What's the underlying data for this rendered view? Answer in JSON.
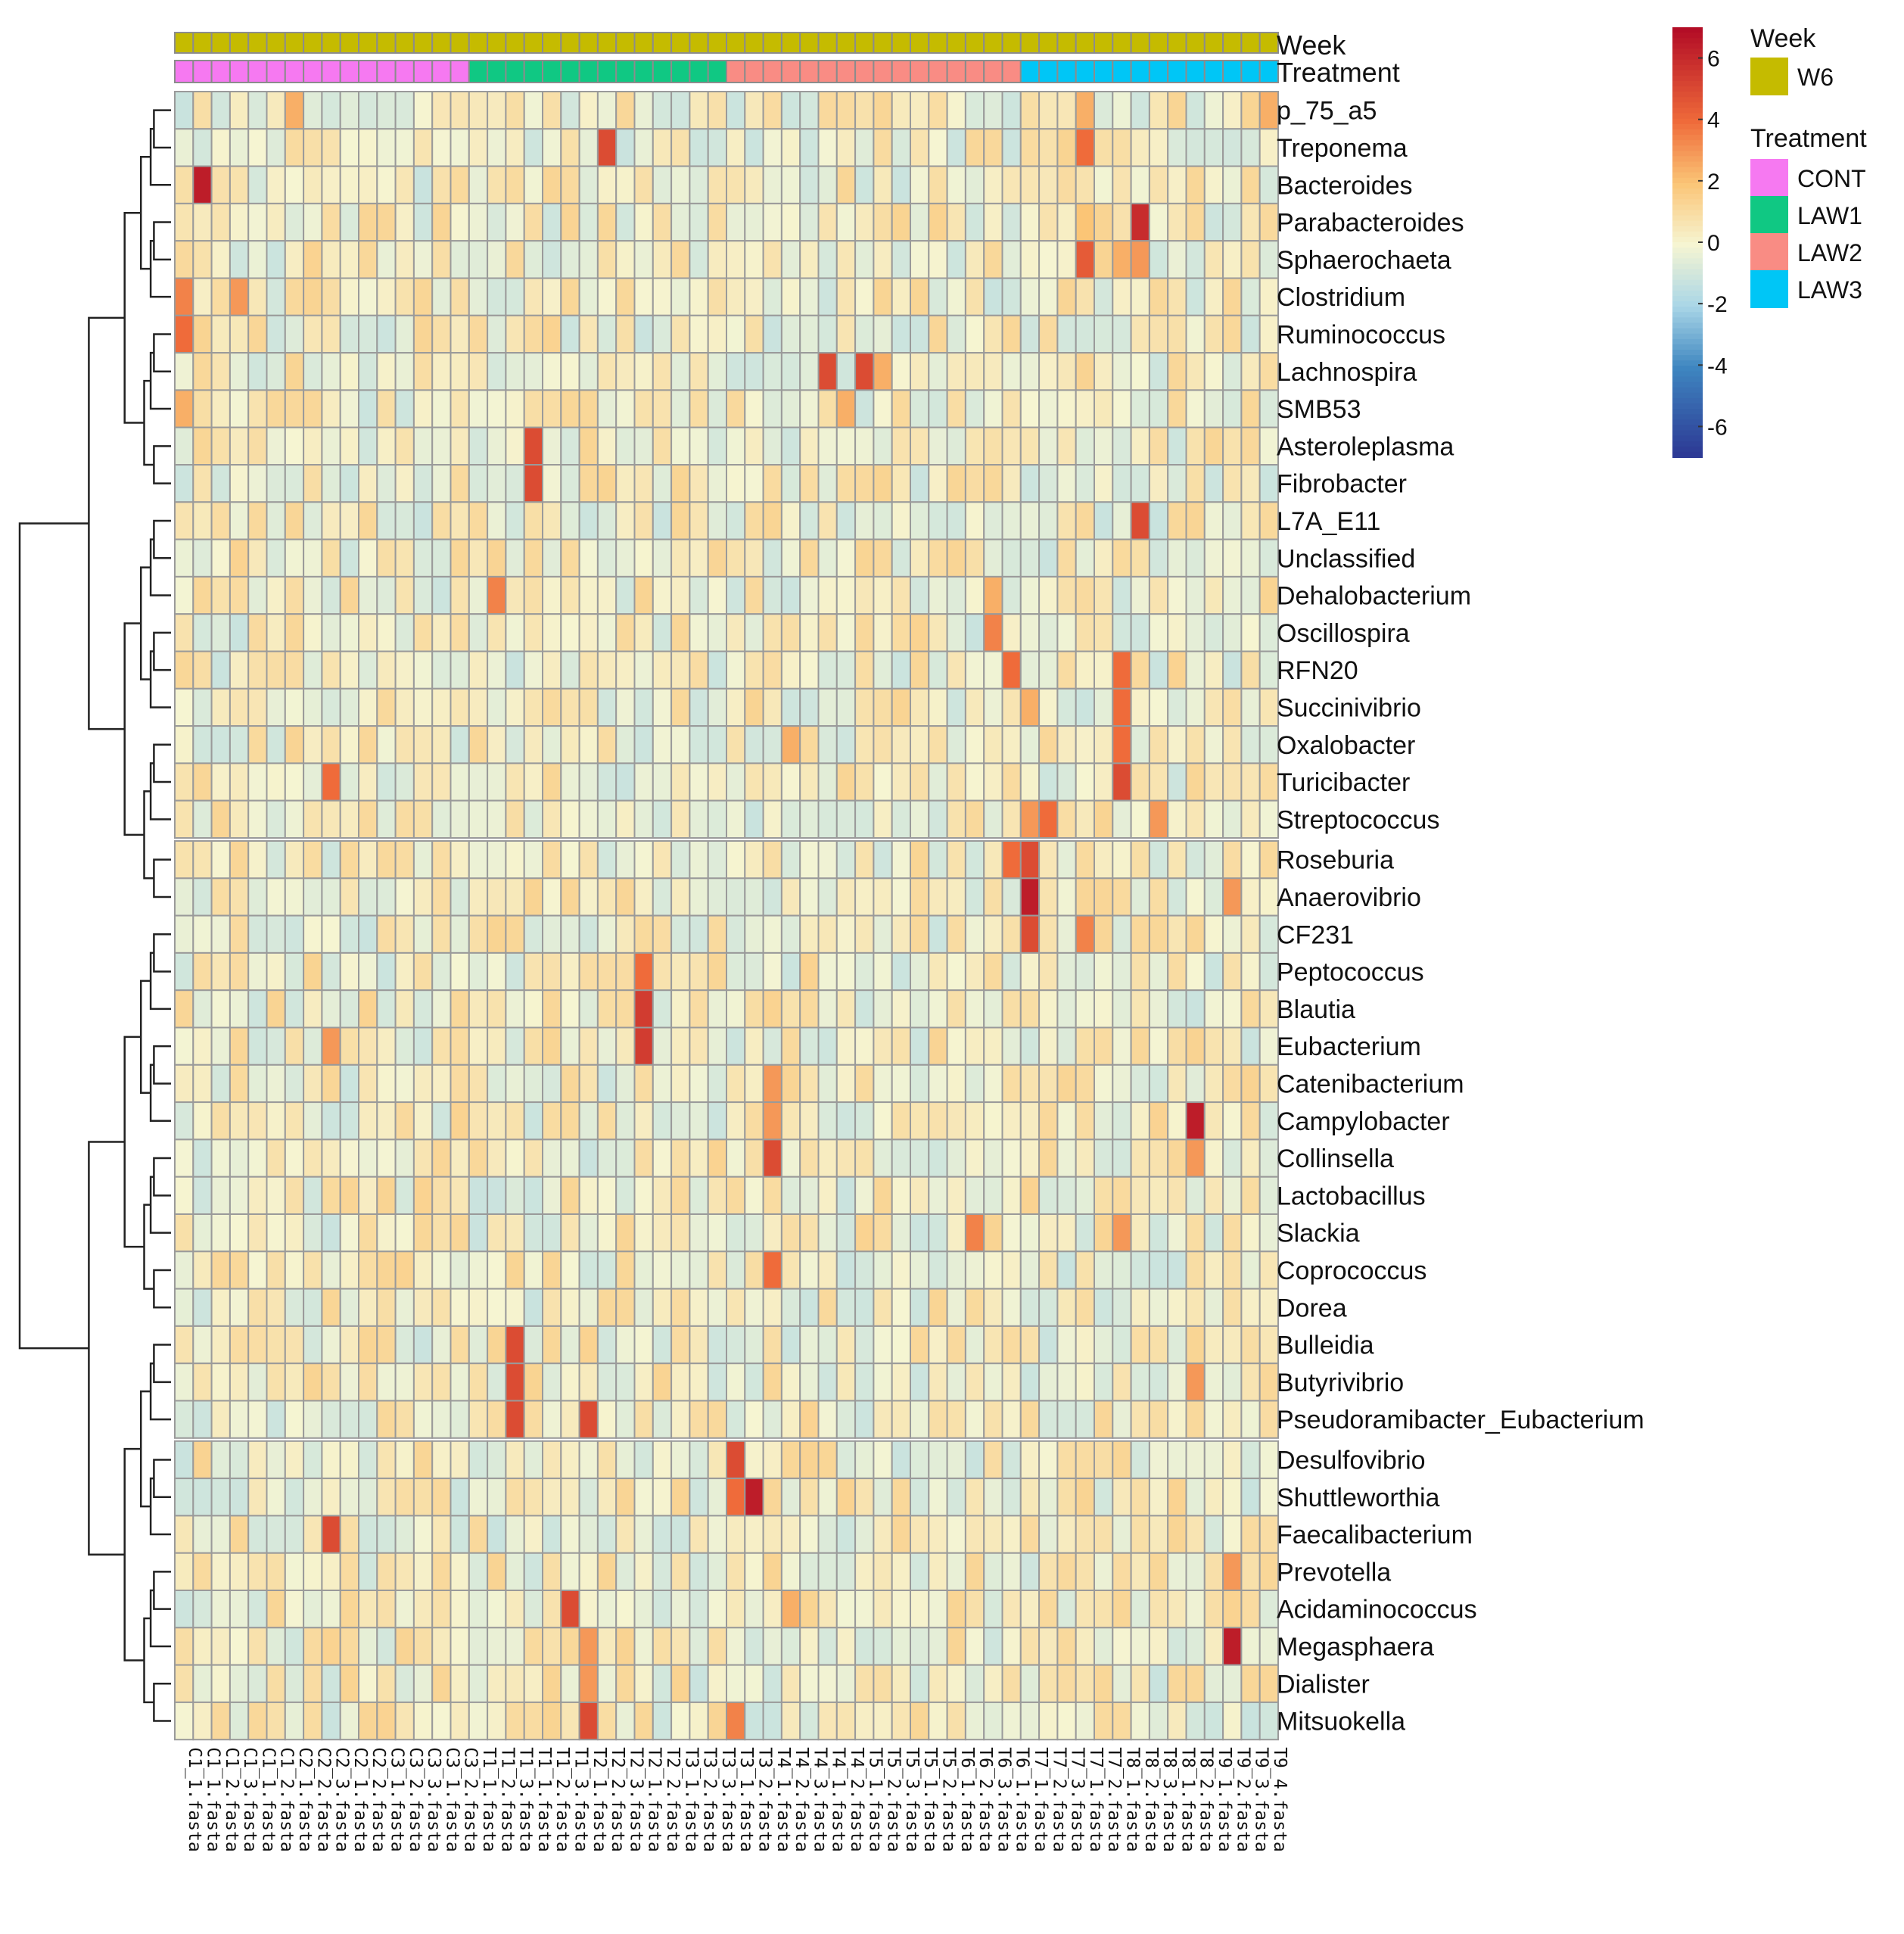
{
  "chart_data": {
    "type": "heatmap",
    "title": "",
    "rows": [
      "p_75_a5",
      "Treponema",
      "Bacteroides",
      "Parabacteroides",
      "Sphaerochaeta",
      "Clostridium",
      "Ruminococcus",
      "Lachnospira",
      "SMB53",
      "Asteroleplasma",
      "Fibrobacter",
      "L7A_E11",
      "Unclassified",
      "Dehalobacterium",
      "Oscillospira",
      "RFN20",
      "Succinivibrio",
      "Oxalobacter",
      "Turicibacter",
      "Streptococcus",
      "Roseburia",
      "Anaerovibrio",
      "CF231",
      "Peptococcus",
      "Blautia",
      "Eubacterium",
      "Catenibacterium",
      "Campylobacter",
      "Collinsella",
      "Lactobacillus",
      "Slackia",
      "Coprococcus",
      "Dorea",
      "Bulleidia",
      "Butyrivibrio",
      "Pseudoramibacter_Eubacterium",
      "Desulfovibrio",
      "Shuttleworthia",
      "Faecalibacterium",
      "Prevotella",
      "Acidaminococcus",
      "Megasphaera",
      "Dialister",
      "Mitsuokella"
    ],
    "n_columns": 60,
    "column_labels": [
      "C1_1.fasta",
      "C1_1.fasta",
      "C1_2.fasta",
      "C1_3.fasta",
      "C1_1.fasta",
      "C1_2.fasta",
      "C2_1.fasta",
      "C2_2.fasta",
      "C2_3.fasta",
      "C2_1.fasta",
      "C2_2.fasta",
      "C3_1.fasta",
      "C3_2.fasta",
      "C3_3.fasta",
      "C3_1.fasta",
      "C3_2.fasta",
      "T1_1.fasta",
      "T1_2.fasta",
      "T1_3.fasta",
      "T1_1.fasta",
      "T1_2.fasta",
      "T1_3.fasta",
      "T2_1.fasta",
      "T2_2.fasta",
      "T2_3.fasta",
      "T2_1.fasta",
      "T2_2.fasta",
      "T3_1.fasta",
      "T3_2.fasta",
      "T3_3.fasta",
      "T3_1.fasta",
      "T3_2.fasta",
      "T4_1.fasta",
      "T4_2.fasta",
      "T4_3.fasta",
      "T4_1.fasta",
      "T4_2.fasta",
      "T5_1.fasta",
      "T5_2.fasta",
      "T5_3.fasta",
      "T5_1.fasta",
      "T5_2.fasta",
      "T6_1.fasta",
      "T6_2.fasta",
      "T6_3.fasta",
      "T6_1.fasta",
      "T7_1.fasta",
      "T7_2.fasta",
      "T7_3.fasta",
      "T7_1.fasta",
      "T7_2.fasta",
      "T8_1.fasta",
      "T8_2.fasta",
      "T8_3.fasta",
      "T8_1.fasta",
      "T8_2.fasta",
      "T9_1.fasta",
      "T9_2.fasta",
      "T9_3.fasta",
      "T9_4.fasta"
    ],
    "week_by_column": "W6",
    "treatment_groups": [
      {
        "name": "CONT",
        "count": 16
      },
      {
        "name": "LAW1",
        "count": 14
      },
      {
        "name": "LAW2",
        "count": 16
      },
      {
        "name": "LAW3",
        "count": 14
      }
    ],
    "row_gaps_after": [
      19,
      35
    ],
    "values_default": 0,
    "hot_cells": [
      {
        "row": "Bacteroides",
        "col": 1,
        "value": 6.5
      },
      {
        "row": "Clostridium",
        "col": 0,
        "value": 3.5
      },
      {
        "row": "Clostridium",
        "col": 3,
        "value": 3
      },
      {
        "row": "Ruminococcus",
        "col": 0,
        "value": 4
      },
      {
        "row": "SMB53",
        "col": 0,
        "value": 2.5
      },
      {
        "row": "p_75_a5",
        "col": 6,
        "value": 2.5
      },
      {
        "row": "p_75_a5",
        "col": 49,
        "value": 2.5
      },
      {
        "row": "p_75_a5",
        "col": 59,
        "value": 2.5
      },
      {
        "row": "Treponema",
        "col": 23,
        "value": 5
      },
      {
        "row": "Treponema",
        "col": 49,
        "value": 4
      },
      {
        "row": "Parabacteroides",
        "col": 52,
        "value": 6
      },
      {
        "row": "Parabacteroides",
        "col": 49,
        "value": 2
      },
      {
        "row": "Sphaerochaeta",
        "col": 49,
        "value": 4.5
      },
      {
        "row": "Sphaerochaeta",
        "col": 52,
        "value": 3
      },
      {
        "row": "Sphaerochaeta",
        "col": 51,
        "value": 2.5
      },
      {
        "row": "Lachnospira",
        "col": 35,
        "value": 5
      },
      {
        "row": "Lachnospira",
        "col": 37,
        "value": 5
      },
      {
        "row": "Lachnospira",
        "col": 38,
        "value": 2.5
      },
      {
        "row": "SMB53",
        "col": 36,
        "value": 2.5
      },
      {
        "row": "Asteroleplasma",
        "col": 19,
        "value": 5
      },
      {
        "row": "Fibrobacter",
        "col": 19,
        "value": 5
      },
      {
        "row": "L7A_E11",
        "col": 52,
        "value": 5
      },
      {
        "row": "Dehalobacterium",
        "col": 17,
        "value": 3.5
      },
      {
        "row": "Dehalobacterium",
        "col": 44,
        "value": 2.5
      },
      {
        "row": "Oscillospira",
        "col": 44,
        "value": 3.5
      },
      {
        "row": "RFN20",
        "col": 45,
        "value": 4
      },
      {
        "row": "RFN20",
        "col": 51,
        "value": 4
      },
      {
        "row": "Succinivibrio",
        "col": 51,
        "value": 4
      },
      {
        "row": "Succinivibrio",
        "col": 46,
        "value": 2.5
      },
      {
        "row": "Oxalobacter",
        "col": 51,
        "value": 4
      },
      {
        "row": "Oxalobacter",
        "col": 33,
        "value": 2.5
      },
      {
        "row": "Turicibacter",
        "col": 51,
        "value": 5
      },
      {
        "row": "Turicibacter",
        "col": 8,
        "value": 4
      },
      {
        "row": "Streptococcus",
        "col": 47,
        "value": 4
      },
      {
        "row": "Streptococcus",
        "col": 46,
        "value": 3
      },
      {
        "row": "Streptococcus",
        "col": 53,
        "value": 3
      },
      {
        "row": "Roseburia",
        "col": 46,
        "value": 5
      },
      {
        "row": "Roseburia",
        "col": 45,
        "value": 4
      },
      {
        "row": "Anaerovibrio",
        "col": 46,
        "value": 6.5
      },
      {
        "row": "Anaerovibrio",
        "col": 57,
        "value": 3
      },
      {
        "row": "CF231",
        "col": 46,
        "value": 5
      },
      {
        "row": "CF231",
        "col": 49,
        "value": 3.5
      },
      {
        "row": "Peptococcus",
        "col": 25,
        "value": 4
      },
      {
        "row": "Blautia",
        "col": 25,
        "value": 5.5
      },
      {
        "row": "Eubacterium",
        "col": 25,
        "value": 5.5
      },
      {
        "row": "Eubacterium",
        "col": 8,
        "value": 3
      },
      {
        "row": "Catenibacterium",
        "col": 32,
        "value": 3
      },
      {
        "row": "Campylobacter",
        "col": 55,
        "value": 6.5
      },
      {
        "row": "Campylobacter",
        "col": 32,
        "value": 3
      },
      {
        "row": "Collinsella",
        "col": 32,
        "value": 5
      },
      {
        "row": "Collinsella",
        "col": 55,
        "value": 3
      },
      {
        "row": "Slackia",
        "col": 43,
        "value": 3.5
      },
      {
        "row": "Slackia",
        "col": 51,
        "value": 3
      },
      {
        "row": "Coprococcus",
        "col": 32,
        "value": 4
      },
      {
        "row": "Bulleidia",
        "col": 18,
        "value": 5
      },
      {
        "row": "Butyrivibrio",
        "col": 18,
        "value": 5
      },
      {
        "row": "Butyrivibrio",
        "col": 55,
        "value": 3
      },
      {
        "row": "Pseudoramibacter_Eubacterium",
        "col": 18,
        "value": 5
      },
      {
        "row": "Pseudoramibacter_Eubacterium",
        "col": 22,
        "value": 5
      },
      {
        "row": "Desulfovibrio",
        "col": 30,
        "value": 5
      },
      {
        "row": "Shuttleworthia",
        "col": 31,
        "value": 6.5
      },
      {
        "row": "Shuttleworthia",
        "col": 30,
        "value": 4
      },
      {
        "row": "Faecalibacterium",
        "col": 8,
        "value": 5
      },
      {
        "row": "Prevotella",
        "col": 57,
        "value": 3
      },
      {
        "row": "Acidaminococcus",
        "col": 21,
        "value": 5
      },
      {
        "row": "Acidaminococcus",
        "col": 33,
        "value": 2.5
      },
      {
        "row": "Megasphaera",
        "col": 57,
        "value": 6.5
      },
      {
        "row": "Megasphaera",
        "col": 22,
        "value": 3
      },
      {
        "row": "Dialister",
        "col": 22,
        "value": 3
      },
      {
        "row": "Mitsuokella",
        "col": 22,
        "value": 5
      },
      {
        "row": "Mitsuokella",
        "col": 30,
        "value": 3.5
      }
    ],
    "color_scale": {
      "min": -7,
      "max": 7,
      "ticks": [
        6,
        4,
        2,
        0,
        -2,
        -4,
        -6
      ],
      "stops": [
        {
          "v": -7,
          "c": "#2c3592"
        },
        {
          "v": -4,
          "c": "#3e86c0"
        },
        {
          "v": -2,
          "c": "#a9d6e7"
        },
        {
          "v": 0,
          "c": "#f6f5d2"
        },
        {
          "v": 2,
          "c": "#fbc576"
        },
        {
          "v": 4,
          "c": "#ef6b3a"
        },
        {
          "v": 7,
          "c": "#b30d26"
        }
      ]
    },
    "grid": true
  },
  "annotations": {
    "week_label": "Week",
    "treatment_label": "Treatment"
  },
  "legend": {
    "week_title": "Week",
    "week_items": [
      {
        "label": "W6",
        "color": "#c5bb00"
      }
    ],
    "treatment_title": "Treatment",
    "treatment_items": [
      {
        "label": "CONT",
        "color": "#f679f1"
      },
      {
        "label": "LAW1",
        "color": "#10c883"
      },
      {
        "label": "LAW2",
        "color": "#f98c84"
      },
      {
        "label": "LAW3",
        "color": "#00c6f6"
      }
    ]
  }
}
